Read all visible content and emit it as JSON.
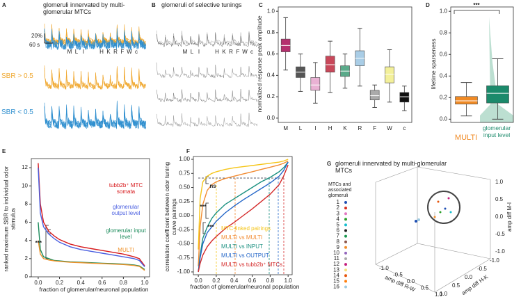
{
  "panels": {
    "A": {
      "letter": "A",
      "title": "glomeruli innervated by multi-glomerular MTCs",
      "scale_y": "20%",
      "scale_x": "60 s",
      "odors": [
        "M",
        "L",
        "I",
        "H",
        "K",
        "R",
        "F",
        "W",
        "c"
      ],
      "rows": [
        "SBR > 0.5",
        "SBR < 0.5"
      ]
    },
    "B": {
      "letter": "B",
      "title": "glomeruli of selective tunings",
      "odors": [
        "M",
        "L",
        "I",
        "H",
        "K",
        "R",
        "F",
        "W",
        "c"
      ]
    },
    "G": {
      "letter": "G",
      "title": "glomeruli innervated by multi-glomerular MTCs",
      "legend_title": "MTCs and associated glomeruli",
      "legend": [
        "1",
        "2",
        "3",
        "4",
        "5",
        "6",
        "7",
        "8",
        "9",
        "10",
        "11",
        "12",
        "13",
        "14",
        "15",
        "16"
      ],
      "legend_colors": [
        "#1f4fb4",
        "#d7301f",
        "#e377c2",
        "#2ca02c",
        "#17becf",
        "#222222",
        "#1a9850",
        "#8c564b",
        "#f28e2b",
        "#9467bd",
        "#aaaaaa",
        "#c51b7d",
        "#f7e27a",
        "#e6550d",
        "#ff7f0e",
        "#9ecae1"
      ],
      "xlabel": "amp diff R-W",
      "ylabel": "amp diff H-K",
      "zlabel": "amp diff M-I",
      "xticks": [
        "-1.0",
        "-0.5",
        "0.0",
        "0.5",
        "1.0"
      ],
      "yticks": [
        "1.0",
        "0.5",
        "0.0",
        "-0.5",
        "-1.0"
      ],
      "zticks": [
        "1.0",
        "0.5",
        "0.0",
        "-0.5",
        "-1.0"
      ]
    }
  },
  "chart_data": [
    {
      "panel": "C",
      "type": "box",
      "ylabel": "normalized response peak amplitude",
      "categories": [
        "M",
        "L",
        "I",
        "H",
        "K",
        "R",
        "F",
        "W",
        "c"
      ],
      "colors": [
        "#b5306e",
        "#555555",
        "#eab2d4",
        "#c8485a",
        "#5aaa8a",
        "#a9cde6",
        "#aaaaaa",
        "#f3f09a",
        "#111111"
      ],
      "whisker_low": [
        0.45,
        0.25,
        0.14,
        0.24,
        0.28,
        0.3,
        0.1,
        0.15,
        0.07
      ],
      "q1": [
        0.62,
        0.38,
        0.26,
        0.43,
        0.39,
        0.49,
        0.17,
        0.33,
        0.15
      ],
      "median": [
        0.68,
        0.43,
        0.31,
        0.5,
        0.44,
        0.56,
        0.21,
        0.41,
        0.2
      ],
      "q3": [
        0.74,
        0.48,
        0.38,
        0.58,
        0.49,
        0.63,
        0.26,
        0.48,
        0.24
      ],
      "whisker_high": [
        0.94,
        0.6,
        0.52,
        0.72,
        0.6,
        0.84,
        0.31,
        0.64,
        0.3
      ],
      "ylim": [
        -0.04,
        1.04
      ],
      "yticks": [
        {
          "value": 0,
          "label": "0.0"
        },
        0.2,
        0.4,
        0.6,
        0.8,
        {
          "value": 1,
          "label": "1.0"
        }
      ]
    },
    {
      "panel": "D",
      "type": "box",
      "ylabel": "lifetime sparseness",
      "annotation": "***",
      "categories": [
        "MULTI",
        "glomerular input level"
      ],
      "colors": [
        "#f08a24",
        "#1b8a6b"
      ],
      "whisker_low": [
        0.03,
        0.0
      ],
      "q1": [
        0.14,
        0.15
      ],
      "median": [
        0.17,
        0.24
      ],
      "q3": [
        0.21,
        0.31
      ],
      "whisker_high": [
        0.34,
        0.56
      ],
      "ylim": [
        -0.03,
        1.04
      ],
      "yticks": [
        {
          "value": 0,
          "label": "0.0"
        },
        0.2,
        0.4,
        0.6,
        0.8,
        {
          "value": 1,
          "label": "1.0"
        }
      ]
    },
    {
      "panel": "E",
      "type": "line",
      "xlabel": "fraction of glomerular/neuronal population",
      "ylabel": "ranked maximum SBR to individual odor stimulus",
      "annotation": "***",
      "x": [
        0,
        0.02,
        0.05,
        0.1,
        0.15,
        0.2,
        0.3,
        0.4,
        0.5,
        0.6,
        0.7,
        0.8,
        0.9,
        0.95,
        1.0
      ],
      "series": [
        {
          "name": "tubb2b⁺ MTC somata",
          "color": "#d7191c",
          "values": [
            12.5,
            8,
            6,
            5,
            4.5,
            4.1,
            3.6,
            3.3,
            3.1,
            2.9,
            2.7,
            2.5,
            2.2,
            2.0,
            1.2
          ]
        },
        {
          "name": "glomerular output level",
          "color": "#4a5fe0",
          "values": [
            12,
            7,
            5.5,
            4.7,
            4.2,
            3.8,
            3.3,
            3.0,
            2.8,
            2.6,
            2.4,
            2.2,
            2.0,
            1.8,
            1.1
          ]
        },
        {
          "name": "glomerular input level",
          "color": "#1a8a5a",
          "values": [
            6,
            3,
            2.2,
            2.0,
            1.8,
            1.75,
            1.65,
            1.6,
            1.55,
            1.5,
            1.45,
            1.4,
            1.3,
            1.2,
            0.8
          ]
        },
        {
          "name": "MULTI",
          "color": "#f0922a",
          "values": [
            4,
            2.5,
            2.0,
            1.85,
            1.75,
            1.7,
            1.6,
            1.55,
            1.5,
            1.45,
            1.4,
            1.35,
            1.25,
            1.15,
            0.7
          ]
        }
      ],
      "xlim": [
        -0.065,
        1.046
      ],
      "ylim": [
        0,
        13
      ],
      "xticks": [
        {
          "value": 0,
          "label": "0.0"
        },
        0.2,
        0.4,
        0.6,
        0.8,
        {
          "value": 1,
          "label": "1.0"
        }
      ],
      "yticks": [
        0,
        2,
        4,
        6,
        8,
        10,
        12
      ]
    },
    {
      "panel": "F",
      "type": "line",
      "xlabel": "fraction of glomerular/neuronal population",
      "ylabel": "correlation coefficent between odor tuning curve pairings",
      "annotations": [
        "ns",
        "***",
        "***"
      ],
      "x": [
        0,
        0.02,
        0.05,
        0.1,
        0.15,
        0.2,
        0.3,
        0.4,
        0.5,
        0.6,
        0.7,
        0.8,
        0.9,
        0.95,
        1.0
      ],
      "series": [
        {
          "name": "MTC-linked pairings",
          "color": "#f5c518",
          "values": [
            -0.6,
            0.3,
            0.6,
            0.7,
            0.75,
            0.78,
            0.82,
            0.85,
            0.87,
            0.89,
            0.91,
            0.93,
            0.95,
            0.97,
            1.0
          ]
        },
        {
          "name": "MULTI vs MULTI",
          "color": "#f28a30",
          "values": [
            -0.9,
            -0.2,
            0.2,
            0.45,
            0.55,
            0.6,
            0.66,
            0.7,
            0.74,
            0.78,
            0.82,
            0.86,
            0.9,
            0.93,
            0.97
          ]
        },
        {
          "name": "MULTI vs INPUT",
          "color": "#1a9080",
          "values": [
            -1,
            -0.7,
            -0.4,
            -0.2,
            -0.05,
            0.05,
            0.2,
            0.3,
            0.4,
            0.5,
            0.6,
            0.68,
            0.78,
            0.85,
            0.95
          ]
        },
        {
          "name": "MULTI vs OUTPUT",
          "color": "#2466c8",
          "values": [
            -1,
            -0.75,
            -0.5,
            -0.3,
            -0.2,
            -0.1,
            0.05,
            0.17,
            0.28,
            0.38,
            0.48,
            0.58,
            0.7,
            0.8,
            0.95
          ]
        },
        {
          "name": "MULTI vs tubb2b⁺ MTCs",
          "color": "#d42a2a",
          "values": [
            -1,
            -0.85,
            -0.7,
            -0.55,
            -0.45,
            -0.37,
            -0.23,
            -0.12,
            0,
            0.12,
            0.25,
            0.38,
            0.55,
            0.7,
            0.9
          ]
        }
      ],
      "xlim": [
        -0.055,
        1.045
      ],
      "ylim": [
        -1.05,
        1.05
      ],
      "xticks": [
        {
          "value": 0,
          "label": "0.0"
        },
        0.2,
        0.4,
        0.6,
        0.8,
        {
          "value": 1,
          "label": "1.0"
        }
      ],
      "yticks": [
        {
          "value": -1,
          "label": "-1.00"
        },
        -0.75,
        {
          "value": -0.5,
          "label": "-0.50"
        },
        -0.25,
        {
          "value": 0,
          "label": "0.00"
        },
        0.25,
        {
          "value": 0.5,
          "label": "0.50"
        },
        0.75,
        {
          "value": 1,
          "label": "1.00"
        }
      ]
    }
  ]
}
